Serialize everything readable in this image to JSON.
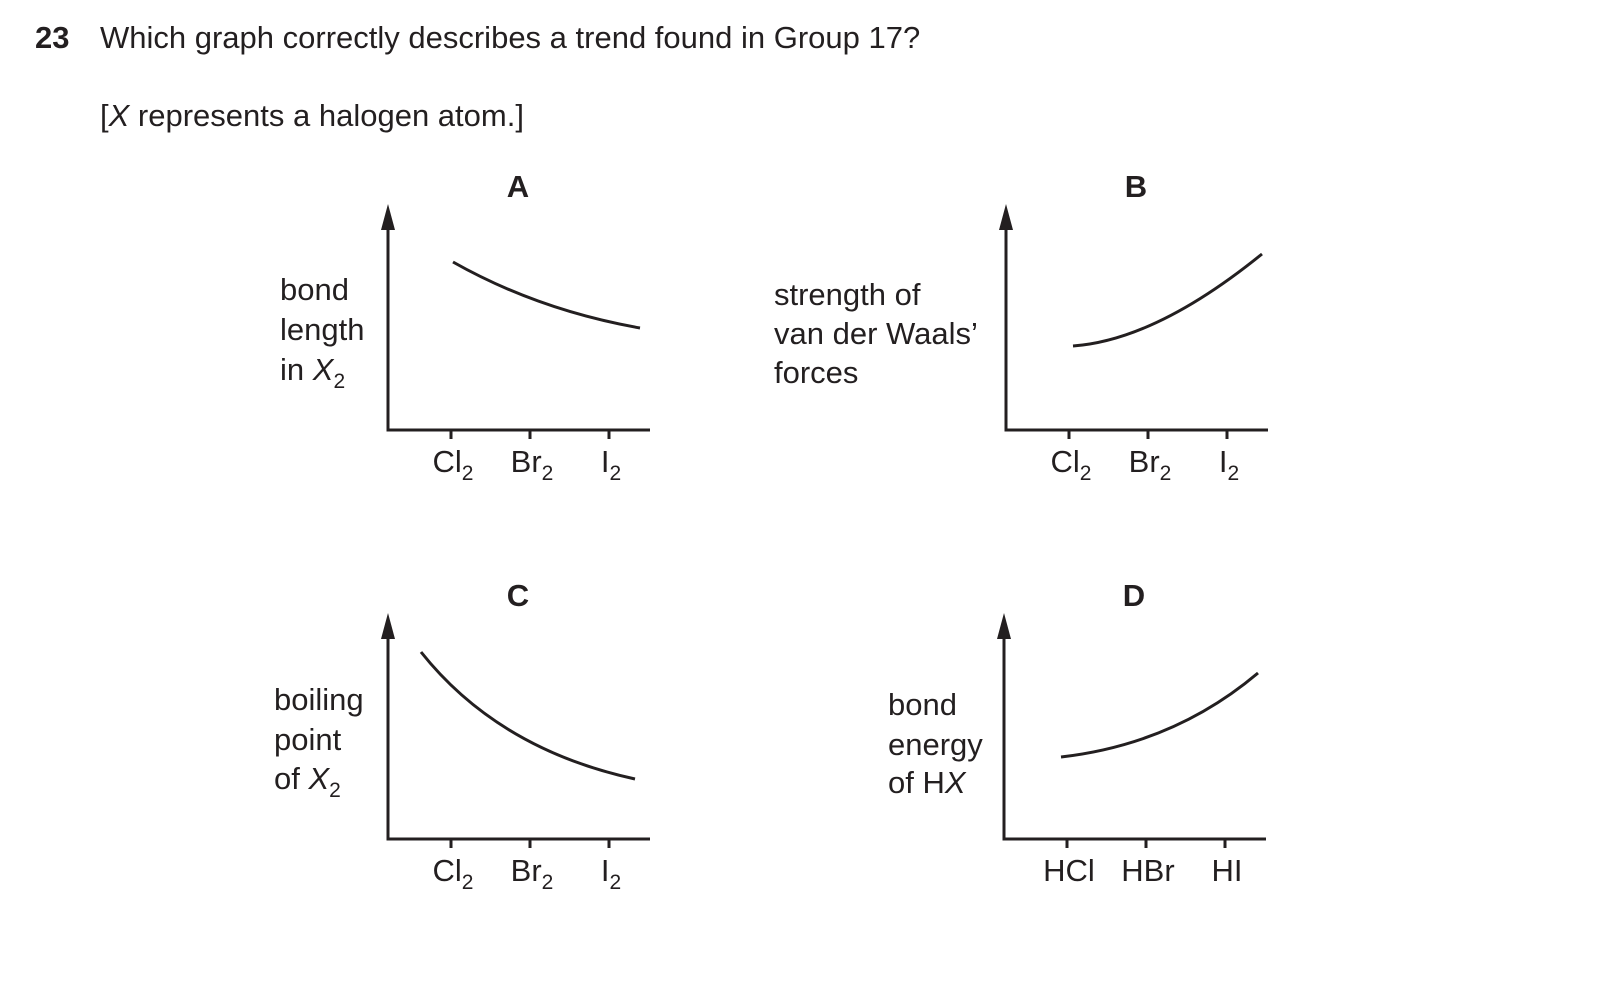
{
  "question": {
    "number": "23",
    "text": "Which graph correctly describes a trend found in Group 17?",
    "note": {
      "open": "[",
      "symbol": "X",
      "rest": " represents a halogen atom.]"
    }
  },
  "graphs": [
    {
      "letter": "A",
      "y_label": [
        {
          "text": "bond"
        },
        {
          "text": "length"
        },
        {
          "text": "in ",
          "symbol": "X",
          "sub": "2"
        }
      ],
      "x_labels": [
        {
          "text": "Cl",
          "sub": "2"
        },
        {
          "text": "Br",
          "sub": "2"
        },
        {
          "text": "I",
          "sub": "2"
        }
      ]
    },
    {
      "letter": "B",
      "y_label": [
        {
          "text": "strength of"
        },
        {
          "text": "van der Waals’"
        },
        {
          "text": "forces"
        }
      ],
      "x_labels": [
        {
          "text": "Cl",
          "sub": "2"
        },
        {
          "text": "Br",
          "sub": "2"
        },
        {
          "text": "I",
          "sub": "2"
        }
      ]
    },
    {
      "letter": "C",
      "y_label": [
        {
          "text": "boiling"
        },
        {
          "text": "point"
        },
        {
          "text": "of ",
          "symbol": "X",
          "sub": "2"
        }
      ],
      "x_labels": [
        {
          "text": "Cl",
          "sub": "2"
        },
        {
          "text": "Br",
          "sub": "2"
        },
        {
          "text": "I",
          "sub": "2"
        }
      ]
    },
    {
      "letter": "D",
      "y_label": [
        {
          "text": "bond"
        },
        {
          "text": "energy"
        },
        {
          "text": "of H",
          "symbol": "X"
        }
      ],
      "x_labels": [
        {
          "text": "HCl"
        },
        {
          "text": "HBr"
        },
        {
          "text": "HI"
        }
      ]
    }
  ]
}
